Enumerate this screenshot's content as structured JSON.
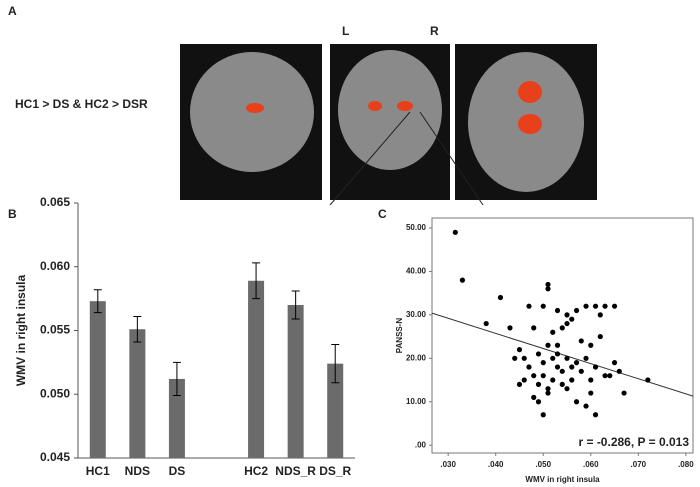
{
  "panels": {
    "a": {
      "label": "A",
      "left": "L",
      "right": "R",
      "contrast": "HC1 > DS & HC2 > DSR"
    },
    "b": {
      "label": "B"
    },
    "c": {
      "label": "C"
    }
  },
  "chart_data": [
    {
      "type": "bar",
      "y_label": "WMV in right insula",
      "categories": [
        "HC1",
        "NDS",
        "DS",
        null,
        "HC2",
        "NDS_R",
        "DS_R"
      ],
      "values": [
        0.0573,
        0.0551,
        0.0512,
        null,
        0.0589,
        0.057,
        0.0524
      ],
      "errors": [
        0.0009,
        0.001,
        0.0013,
        null,
        0.0014,
        0.0011,
        0.0015
      ],
      "color": "#6b6b6b",
      "ylim": [
        0.045,
        0.065
      ],
      "yticks": [
        0.045,
        {
          "value": 0.05,
          "label": "0.050"
        },
        0.055,
        {
          "value": 0.06,
          "label": "0.060"
        },
        0.065
      ]
    },
    {
      "type": "scatter",
      "x_label": "WMV in right insula",
      "y_label": "PANSS-N",
      "annotation": "r = -0.286, P = 0.013",
      "color": "#000000",
      "x": [
        0.0315,
        0.033,
        0.038,
        0.041,
        0.043,
        0.044,
        0.045,
        0.045,
        0.046,
        0.046,
        0.047,
        0.047,
        0.048,
        0.048,
        0.049,
        0.049,
        0.049,
        0.05,
        0.05,
        0.05,
        0.05,
        0.051,
        0.051,
        0.051,
        0.051,
        0.052,
        0.052,
        0.052,
        0.053,
        0.053,
        0.053,
        0.053,
        0.054,
        0.054,
        0.054,
        0.055,
        0.055,
        0.055,
        0.055,
        0.056,
        0.056,
        0.056,
        0.057,
        0.057,
        0.057,
        0.058,
        0.058,
        0.059,
        0.059,
        0.059,
        0.06,
        0.06,
        0.06,
        0.061,
        0.061,
        0.061,
        0.062,
        0.062,
        0.063,
        0.063,
        0.064,
        0.065,
        0.065,
        0.066,
        0.067,
        0.072,
        0.051,
        0.048
      ],
      "y": [
        49,
        38,
        28,
        34,
        27,
        20,
        14,
        22,
        15,
        20,
        32,
        18,
        11,
        27,
        21,
        10,
        14,
        19,
        16,
        7,
        32,
        36,
        37,
        23,
        13,
        20,
        26,
        15,
        31,
        21,
        18,
        23,
        14,
        27,
        17,
        30,
        20,
        13,
        28,
        29,
        18,
        15,
        19,
        31,
        10,
        17,
        24,
        32,
        20,
        9,
        15,
        23,
        12,
        32,
        7,
        18,
        30,
        25,
        32,
        16,
        16,
        32,
        19,
        17,
        12,
        15,
        12,
        16
      ],
      "trend_line": {
        "x": [
          0.0266,
          0.0815
        ],
        "y": [
          30.4,
          11.3
        ]
      },
      "xlim": [
        0.0266,
        0.0815
      ],
      "ylim": [
        -1.8,
        52.3
      ],
      "xticks": [
        {
          "value": 0.03,
          "label": ".030"
        },
        {
          "value": 0.04,
          "label": ".040"
        },
        {
          "value": 0.05,
          "label": ".050"
        },
        {
          "value": 0.06,
          "label": ".060"
        },
        {
          "value": 0.07,
          "label": ".070"
        },
        {
          "value": 0.08,
          "label": ".080"
        }
      ],
      "yticks": [
        {
          "value": 0,
          "label": ".00"
        },
        {
          "value": 10,
          "label": "10.00"
        },
        {
          "value": 20,
          "label": "20.00"
        },
        {
          "value": 30,
          "label": "30.00"
        },
        {
          "value": 40,
          "label": "40.00"
        },
        {
          "value": 50,
          "label": "50.00"
        }
      ]
    }
  ]
}
